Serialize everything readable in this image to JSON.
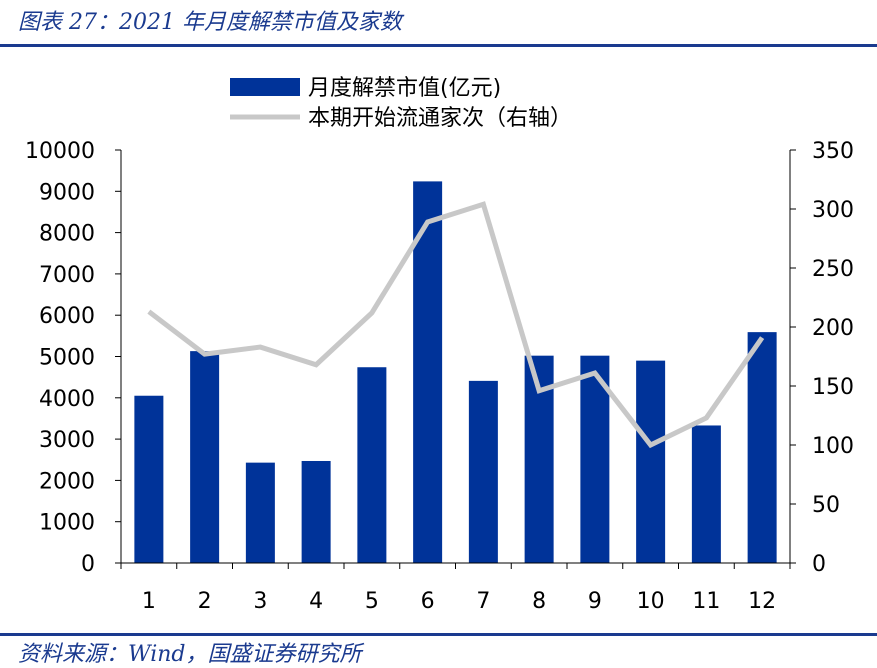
{
  "header": {
    "title": "图表 27：2021 年月度解禁市值及家数"
  },
  "footer": {
    "source": "资料来源：Wind，国盛证券研究所"
  },
  "colors": {
    "bar": "#003399",
    "line": "#c8c8c8",
    "accent": "#1a3a8f"
  },
  "chart_data": {
    "type": "bar",
    "categories": [
      "1",
      "2",
      "3",
      "4",
      "5",
      "6",
      "7",
      "8",
      "9",
      "10",
      "11",
      "12"
    ],
    "series": [
      {
        "name": "月度解禁市值(亿元)",
        "type": "bar",
        "axis": "left",
        "values": [
          4050,
          5130,
          2430,
          2470,
          4740,
          9240,
          4410,
          5020,
          5020,
          4900,
          3330,
          5590
        ]
      },
      {
        "name": "本期开始流通家次（右轴）",
        "type": "line",
        "axis": "right",
        "values": [
          213,
          177,
          183,
          168,
          212,
          289,
          304,
          146,
          161,
          100,
          123,
          191
        ]
      }
    ],
    "y_left": {
      "min": 0,
      "max": 10000,
      "ticks": [
        "0",
        "1000",
        "2000",
        "3000",
        "4000",
        "5000",
        "6000",
        "7000",
        "8000",
        "9000",
        "10000"
      ]
    },
    "y_right": {
      "min": 0,
      "max": 350,
      "ticks": [
        "0",
        "50",
        "100",
        "150",
        "200",
        "250",
        "300",
        "350"
      ]
    },
    "legend_position": "top-center",
    "grid": false
  }
}
